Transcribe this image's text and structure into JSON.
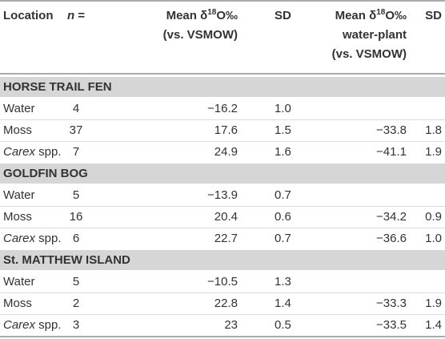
{
  "table": {
    "header": [
      [
        [
          {
            "t": "Location"
          }
        ]
      ],
      [
        [
          {
            "t": "n",
            "i": true
          },
          {
            "t": " ="
          }
        ]
      ],
      [
        [
          {
            "t": "Mean δ"
          },
          {
            "t": "18",
            "sup": true
          },
          {
            "t": "O‰"
          }
        ],
        [
          {
            "t": "(vs. VSMOW)"
          }
        ]
      ],
      [
        [
          {
            "t": "SD"
          }
        ]
      ],
      [
        [
          {
            "t": "Mean δ"
          },
          {
            "t": "18",
            "sup": true
          },
          {
            "t": "O‰"
          }
        ],
        [
          {
            "t": "water-plant"
          }
        ],
        [
          {
            "t": "(vs. VSMOW)"
          }
        ]
      ],
      [
        [
          {
            "t": "SD"
          }
        ]
      ]
    ],
    "sections": [
      {
        "title": "HORSE TRAIL FEN",
        "rows": [
          {
            "location": [
              {
                "t": "Water"
              }
            ],
            "cells": [
              "4",
              "−16.2",
              "1.0"
            ]
          },
          {
            "location": [
              {
                "t": "Moss"
              }
            ],
            "cells": [
              "37",
              "17.6",
              "1.5",
              "−33.8",
              "1.8"
            ]
          },
          {
            "location": [
              {
                "t": "Carex",
                "i": true
              },
              {
                "t": " spp."
              }
            ],
            "cells": [
              "7",
              "24.9",
              "1.6",
              "−41.1",
              "1.9"
            ]
          }
        ]
      },
      {
        "title": "GOLDFIN BOG",
        "rows": [
          {
            "location": [
              {
                "t": "Water"
              }
            ],
            "cells": [
              "5",
              "−13.9",
              "0.7"
            ]
          },
          {
            "location": [
              {
                "t": "Moss"
              }
            ],
            "cells": [
              "16",
              "20.4",
              "0.6",
              "−34.2",
              "0.9"
            ]
          },
          {
            "location": [
              {
                "t": "Carex",
                "i": true
              },
              {
                "t": " spp."
              }
            ],
            "cells": [
              "6",
              "22.7",
              "0.7",
              "−36.6",
              "1.0"
            ]
          }
        ]
      },
      {
        "title": "St. MATTHEW ISLAND",
        "rows": [
          {
            "location": [
              {
                "t": "Water"
              }
            ],
            "cells": [
              "5",
              "−10.5",
              "1.3"
            ]
          },
          {
            "location": [
              {
                "t": "Moss"
              }
            ],
            "cells": [
              "2",
              "22.8",
              "1.4",
              "−33.3",
              "1.9"
            ]
          },
          {
            "location": [
              {
                "t": "Carex",
                "i": true
              },
              {
                "t": " spp."
              }
            ],
            "cells": [
              "3",
              "23",
              "0.5",
              "−33.5",
              "1.4"
            ]
          }
        ]
      }
    ]
  }
}
